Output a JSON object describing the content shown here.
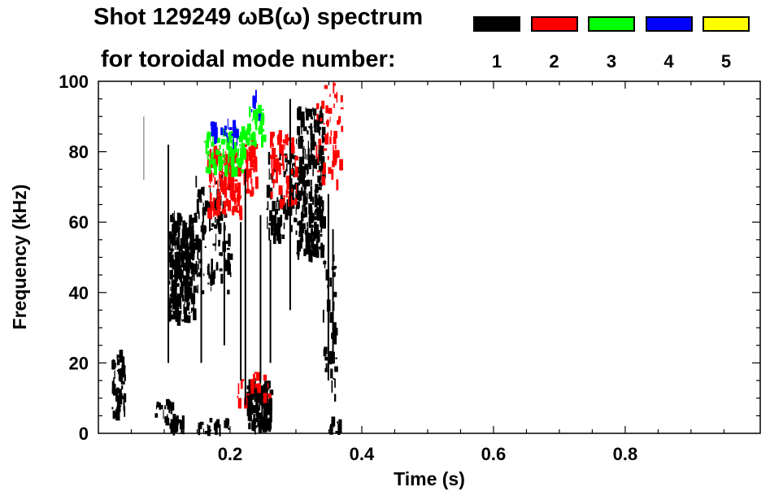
{
  "chart_data": {
    "type": "heatmap",
    "title": "Shot 129249 ωB(ω) spectrum",
    "subtitle": "for toroidal mode number:",
    "xlabel": "Time (s)",
    "ylabel": "Frequency (kHz)",
    "xlim": [
      0,
      1.0
    ],
    "ylim": [
      0,
      100
    ],
    "xticks": [
      "0.2",
      "0.4",
      "0.6",
      "0.8"
    ],
    "xtick_values": [
      0.2,
      0.4,
      0.6,
      0.8
    ],
    "yticks": [
      "0",
      "20",
      "40",
      "60",
      "80",
      "100"
    ],
    "ytick_values": [
      0,
      20,
      40,
      60,
      80,
      100
    ],
    "legend": [
      {
        "label": "1",
        "color": "#000000"
      },
      {
        "label": "2",
        "color": "#ff0000"
      },
      {
        "label": "3",
        "color": "#00ff00"
      },
      {
        "label": "4",
        "color": "#0000ff"
      },
      {
        "label": "5",
        "color": "#ffff00"
      }
    ],
    "grid": false,
    "regions": [
      {
        "mode": 1,
        "t": [
          0.02,
          0.04
        ],
        "f": [
          5,
          22
        ],
        "density": 60
      },
      {
        "mode": 1,
        "t": [
          0.085,
          0.11
        ],
        "f": [
          5,
          9
        ],
        "density": 15
      },
      {
        "mode": 1,
        "t": [
          0.1,
          0.13
        ],
        "f": [
          1,
          4
        ],
        "density": 30
      },
      {
        "mode": 1,
        "t": [
          0.105,
          0.145
        ],
        "f": [
          32,
          62
        ],
        "density": 260
      },
      {
        "mode": 1,
        "t": [
          0.14,
          0.2
        ],
        "f": [
          40,
          72
        ],
        "density": 120
      },
      {
        "mode": 1,
        "t": [
          0.15,
          0.2
        ],
        "f": [
          0,
          4
        ],
        "density": 20
      },
      {
        "mode": 1,
        "t": [
          0.225,
          0.26
        ],
        "f": [
          1,
          14
        ],
        "density": 160
      },
      {
        "mode": 1,
        "t": [
          0.255,
          0.3
        ],
        "f": [
          55,
          80
        ],
        "density": 80
      },
      {
        "mode": 1,
        "t": [
          0.3,
          0.34
        ],
        "f": [
          50,
          92
        ],
        "density": 260
      },
      {
        "mode": 1,
        "t": [
          0.34,
          0.36
        ],
        "f": [
          10,
          50
        ],
        "density": 40
      },
      {
        "mode": 1,
        "t": [
          0.35,
          0.37
        ],
        "f": [
          0,
          4
        ],
        "density": 10
      },
      {
        "mode": 2,
        "t": [
          0.165,
          0.215
        ],
        "f": [
          62,
          80
        ],
        "density": 150
      },
      {
        "mode": 2,
        "t": [
          0.22,
          0.24
        ],
        "f": [
          68,
          82
        ],
        "density": 40
      },
      {
        "mode": 2,
        "t": [
          0.26,
          0.3
        ],
        "f": [
          65,
          85
        ],
        "density": 60
      },
      {
        "mode": 2,
        "t": [
          0.33,
          0.37
        ],
        "f": [
          70,
          100
        ],
        "density": 50
      },
      {
        "mode": 2,
        "t": [
          0.21,
          0.26
        ],
        "f": [
          8,
          18
        ],
        "density": 20
      },
      {
        "mode": 3,
        "t": [
          0.16,
          0.22
        ],
        "f": [
          74,
          86
        ],
        "density": 90
      },
      {
        "mode": 3,
        "t": [
          0.22,
          0.25
        ],
        "f": [
          82,
          92
        ],
        "density": 40
      },
      {
        "mode": 4,
        "t": [
          0.17,
          0.21
        ],
        "f": [
          82,
          88
        ],
        "density": 20
      },
      {
        "mode": 4,
        "t": [
          0.23,
          0.245
        ],
        "f": [
          89,
          96
        ],
        "density": 8
      }
    ],
    "streaks": [
      {
        "mode": 1,
        "t": 0.105,
        "f": [
          20,
          82
        ]
      },
      {
        "mode": 1,
        "t": 0.155,
        "f": [
          20,
          55
        ]
      },
      {
        "mode": 1,
        "t": 0.19,
        "f": [
          25,
          60
        ]
      },
      {
        "mode": 1,
        "t": 0.215,
        "f": [
          15,
          60
        ]
      },
      {
        "mode": 1,
        "t": 0.222,
        "f": [
          8,
          75
        ]
      },
      {
        "mode": 1,
        "t": 0.245,
        "f": [
          15,
          62
        ]
      },
      {
        "mode": 1,
        "t": 0.26,
        "f": [
          20,
          55
        ]
      },
      {
        "mode": 1,
        "t": 0.29,
        "f": [
          35,
          95
        ]
      },
      {
        "mode": 1,
        "t": 0.348,
        "f": [
          15,
          68
        ]
      },
      {
        "mode": 1,
        "t": 0.355,
        "f": [
          20,
          58
        ]
      },
      {
        "mode": 0,
        "t": 0.068,
        "f": [
          72,
          90
        ]
      }
    ]
  }
}
